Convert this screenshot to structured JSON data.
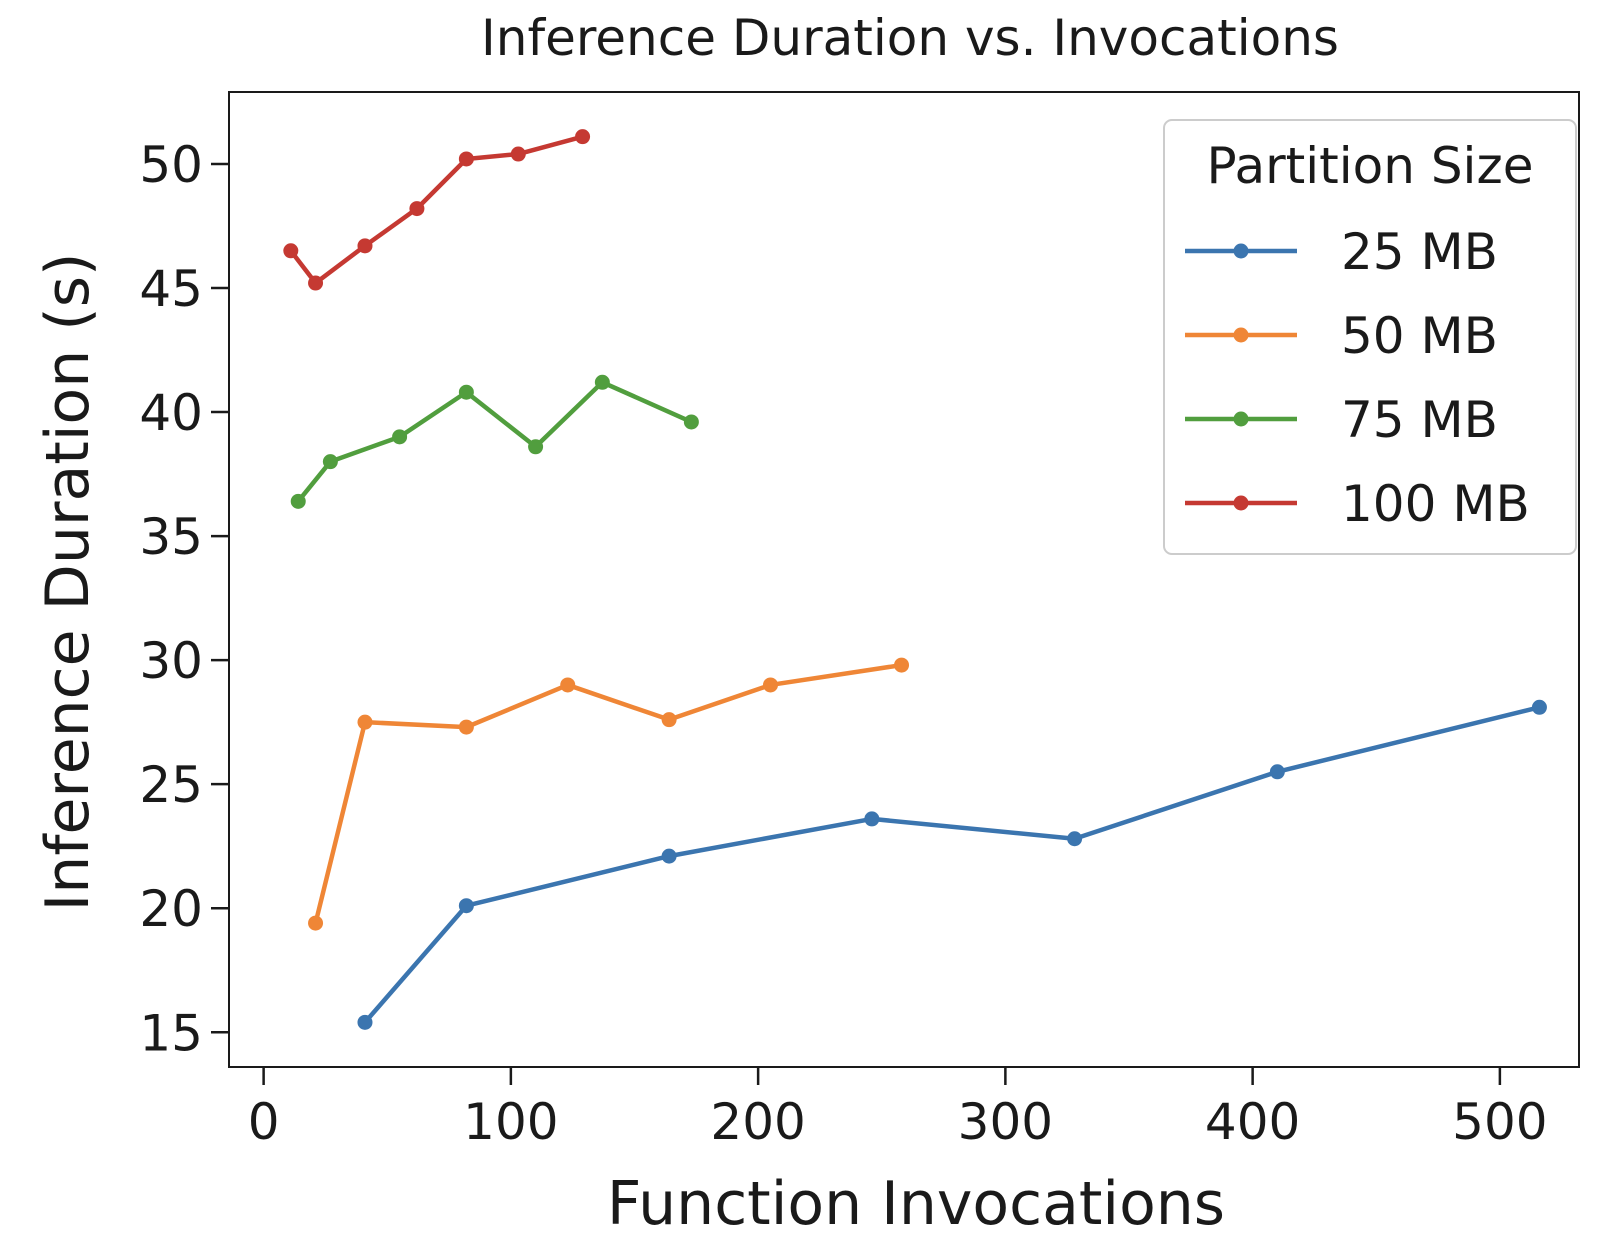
{
  "chart_data": {
    "type": "line",
    "title": "Inference Duration vs. Invocations",
    "xlabel": "Function Invocations",
    "ylabel": "Inference Duration (s)",
    "xlim": [
      -14,
      532
    ],
    "ylim": [
      13.6,
      52.9
    ],
    "x_ticks": [
      0,
      100,
      200,
      300,
      400,
      500
    ],
    "y_ticks": [
      15,
      20,
      25,
      30,
      35,
      40,
      45,
      50
    ],
    "grid": false,
    "legend": {
      "title": "Partition Size",
      "position": "top-right"
    },
    "series": [
      {
        "name": "25 MB",
        "color": "#3b75af",
        "x": [
          41,
          82,
          164,
          246,
          328,
          410,
          516
        ],
        "y": [
          15.4,
          20.1,
          22.1,
          23.6,
          22.8,
          25.5,
          28.1
        ]
      },
      {
        "name": "50 MB",
        "color": "#ef8636",
        "x": [
          21,
          41,
          82,
          123,
          164,
          205,
          258
        ],
        "y": [
          19.4,
          27.5,
          27.3,
          29.0,
          27.6,
          29.0,
          29.8
        ]
      },
      {
        "name": "75 MB",
        "color": "#519e3e",
        "x": [
          14,
          27,
          55,
          82,
          110,
          137,
          173
        ],
        "y": [
          36.4,
          38.0,
          39.0,
          40.8,
          38.6,
          41.2,
          39.6
        ]
      },
      {
        "name": "100 MB",
        "color": "#c53932",
        "x": [
          11,
          21,
          41,
          62,
          82,
          103,
          129
        ],
        "y": [
          46.5,
          45.2,
          46.7,
          48.2,
          50.2,
          50.4,
          51.1
        ]
      }
    ]
  }
}
